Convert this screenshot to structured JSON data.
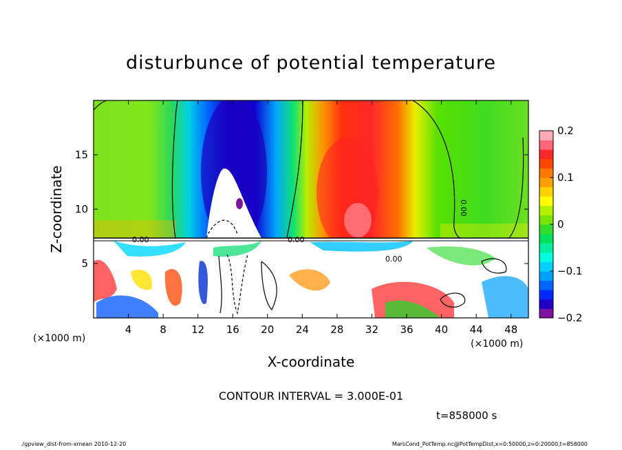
{
  "chart_data": {
    "type": "heatmap",
    "title": "disturbunce of potential temperature",
    "xlabel": "X-coordinate",
    "ylabel": "Z-coordinate",
    "x_unit_left": "(×1000 m)",
    "x_unit_right": "(×1000 m)",
    "xlim": [
      0,
      50
    ],
    "ylim": [
      0,
      20
    ],
    "x_ticks": [
      "4",
      "8",
      "12",
      "16",
      "20",
      "24",
      "28",
      "32",
      "36",
      "40",
      "44",
      "48"
    ],
    "x_tick_values": [
      4,
      8,
      12,
      16,
      20,
      24,
      28,
      32,
      36,
      40,
      44,
      48
    ],
    "y_ticks": [
      "5",
      "10",
      "15"
    ],
    "y_tick_values": [
      5,
      10,
      15
    ],
    "colorbar": {
      "range": [
        -0.2,
        0.2
      ],
      "ticks": [
        "0.2",
        "0.1",
        "0",
        "−0.1",
        "−0.2"
      ],
      "tick_values": [
        0.2,
        0.1,
        0,
        -0.1,
        -0.2
      ],
      "colors": [
        "#7d14a0",
        "#1e00c8",
        "#0028ff",
        "#0064ff",
        "#00a0ff",
        "#00d2ff",
        "#00ffdc",
        "#00f0a0",
        "#00e05a",
        "#32dc2d",
        "#78e600",
        "#b4f000",
        "#ffff00",
        "#ffd200",
        "#ffa000",
        "#ff7800",
        "#ff4600",
        "#ff2828",
        "#ff6478",
        "#ffaab4"
      ]
    },
    "contour_interval_text": "CONTOUR INTERVAL = 3.000E-01",
    "contour_labels": [
      "0.00",
      "0.00",
      "0.00",
      "0.00"
    ],
    "time_text": "t=858000 s"
  },
  "footer": {
    "left": "./gpview_dist-from-xmean 2010-12-20",
    "right": "MarsCond_PotTemp.nc@PotTempDist,x=0:50000,z=0:20000,t=858000"
  }
}
